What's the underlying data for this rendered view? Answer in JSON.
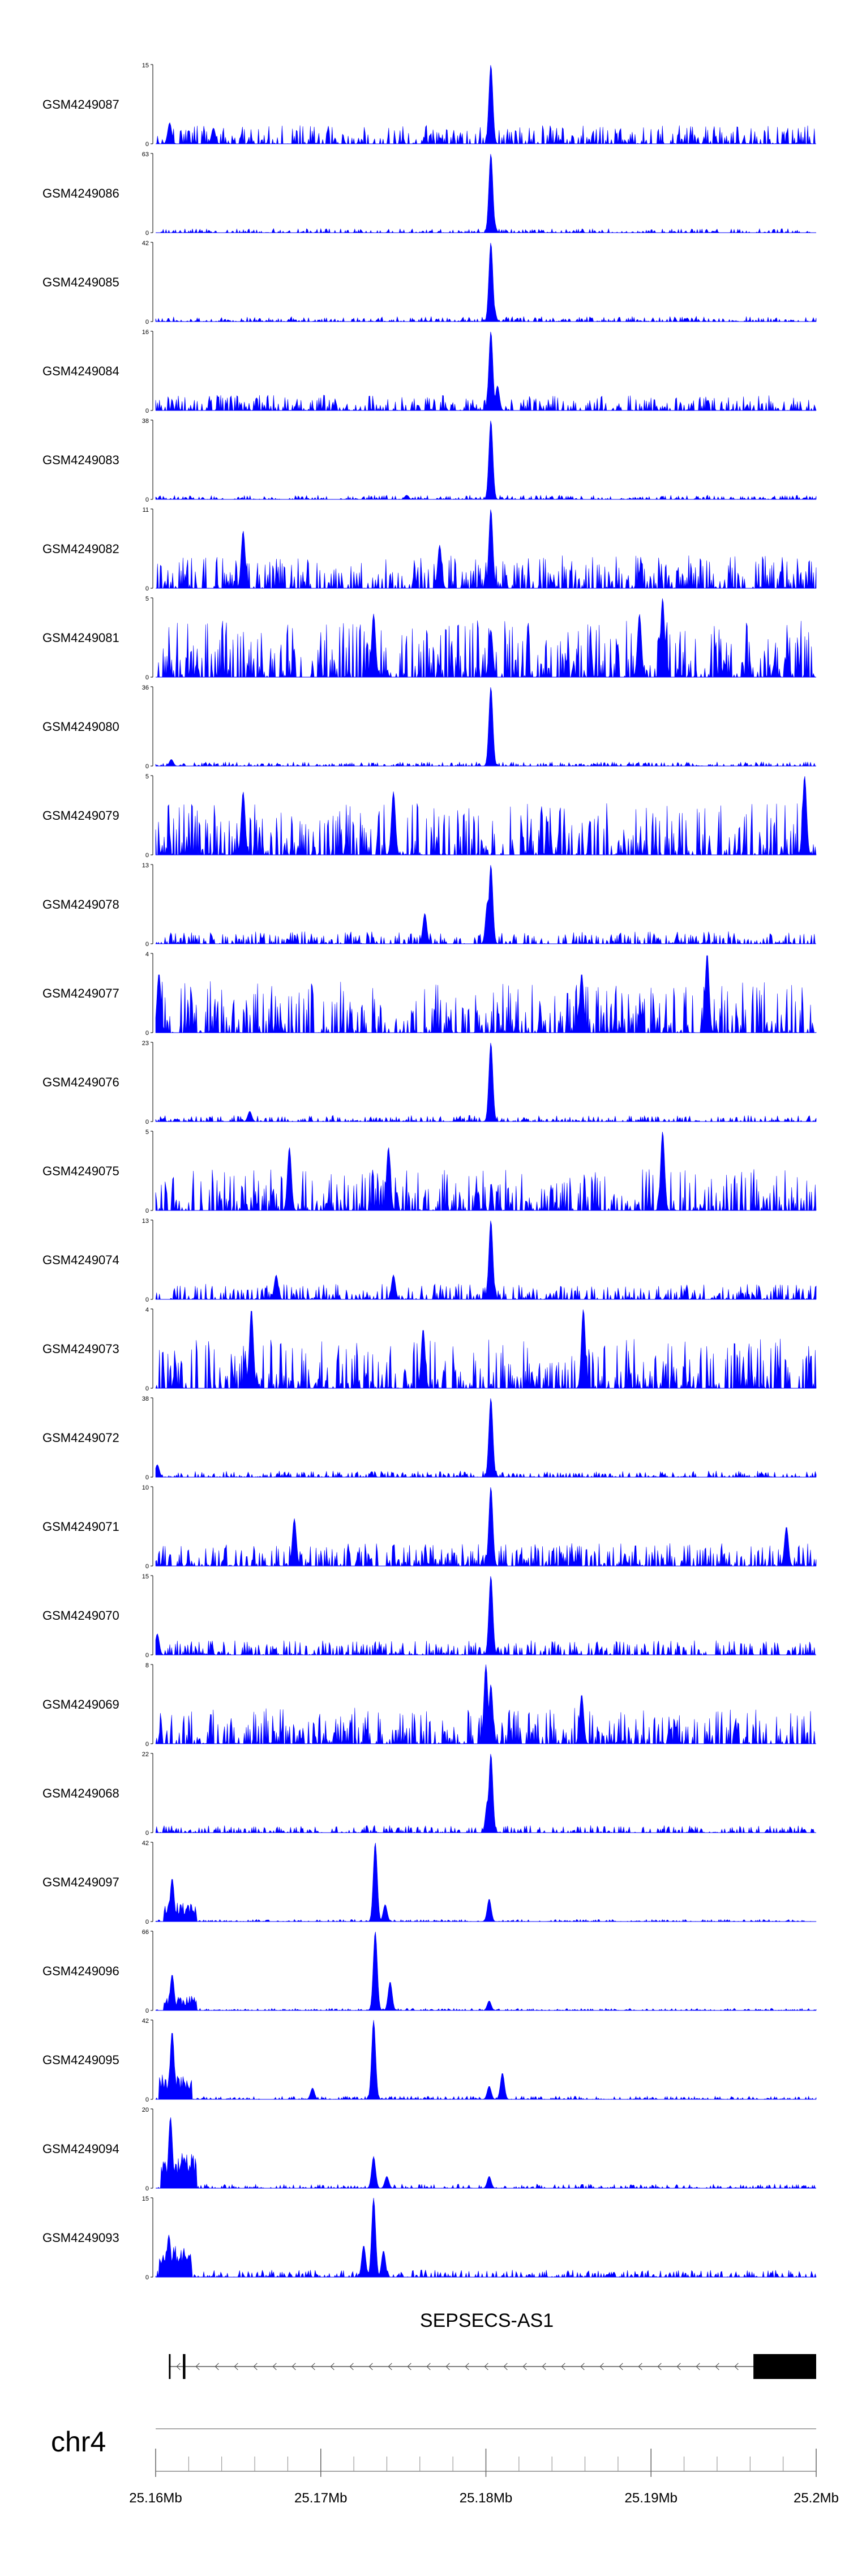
{
  "chart_data": {
    "type": "area",
    "genome": {
      "chromosome": "chr4",
      "x_range": [
        25.16,
        25.2
      ],
      "axis_ticks": [
        {
          "value": 25.16,
          "label": "25.16Mb"
        },
        {
          "value": 25.17,
          "label": "25.17Mb"
        },
        {
          "value": 25.18,
          "label": "25.18Mb"
        },
        {
          "value": 25.19,
          "label": "25.19Mb"
        },
        {
          "value": 25.2,
          "label": "25.2Mb"
        }
      ],
      "minor_tick_step": 0.002
    },
    "gene": {
      "name": "SEPSECS-AS1",
      "start": 25.1608,
      "end": 25.2,
      "strand": "-",
      "exons": [
        [
          25.1608,
          25.1609
        ],
        [
          25.16165,
          25.1618
        ],
        [
          25.1962,
          25.2
        ]
      ]
    },
    "signal_color": "#0000ff",
    "tracks": [
      {
        "name": "GSM4249087",
        "ymax": 15,
        "peaks": [
          [
            25.1803,
            15
          ],
          [
            25.16085,
            4
          ],
          [
            25.1635,
            3
          ]
        ],
        "background": 0.18,
        "noise_seed": 1
      },
      {
        "name": "GSM4249086",
        "ymax": 63,
        "peaks": [
          [
            25.1803,
            63
          ],
          [
            25.18045,
            12
          ]
        ],
        "background": 0.04,
        "noise_seed": 2
      },
      {
        "name": "GSM4249085",
        "ymax": 42,
        "peaks": [
          [
            25.1803,
            42
          ],
          [
            25.18045,
            10
          ]
        ],
        "background": 0.05,
        "noise_seed": 3
      },
      {
        "name": "GSM4249084",
        "ymax": 16,
        "peaks": [
          [
            25.1803,
            16
          ],
          [
            25.1807,
            5
          ]
        ],
        "background": 0.15,
        "noise_seed": 4
      },
      {
        "name": "GSM4249083",
        "ymax": 38,
        "peaks": [
          [
            25.1803,
            38
          ],
          [
            25.1752,
            2
          ]
        ],
        "background": 0.04,
        "noise_seed": 5
      },
      {
        "name": "GSM4249082",
        "ymax": 11,
        "peaks": [
          [
            25.1803,
            11
          ],
          [
            25.1653,
            8
          ],
          [
            25.1772,
            6
          ]
        ],
        "background": 0.32,
        "noise_seed": 6
      },
      {
        "name": "GSM4249081",
        "ymax": 5,
        "peaks": [
          [
            25.1907,
            5
          ],
          [
            25.1893,
            4
          ],
          [
            25.1732,
            4
          ],
          [
            25.1803,
            3
          ]
        ],
        "background": 0.55,
        "noise_seed": 7
      },
      {
        "name": "GSM4249080",
        "ymax": 36,
        "peaks": [
          [
            25.1803,
            36
          ],
          [
            25.16095,
            3
          ]
        ],
        "background": 0.04,
        "noise_seed": 8
      },
      {
        "name": "GSM4249079",
        "ymax": 5,
        "peaks": [
          [
            25.1993,
            5
          ],
          [
            25.1744,
            4
          ],
          [
            25.1653,
            4
          ]
        ],
        "background": 0.5,
        "noise_seed": 9
      },
      {
        "name": "GSM4249078",
        "ymax": 13,
        "peaks": [
          [
            25.1803,
            13
          ],
          [
            25.1801,
            7
          ],
          [
            25.1763,
            5
          ]
        ],
        "background": 0.12,
        "noise_seed": 10
      },
      {
        "name": "GSM4249077",
        "ymax": 4,
        "peaks": [
          [
            25.1934,
            4
          ],
          [
            25.1602,
            3
          ],
          [
            25.1858,
            3
          ]
        ],
        "background": 0.5,
        "noise_seed": 11
      },
      {
        "name": "GSM4249076",
        "ymax": 23,
        "peaks": [
          [
            25.1803,
            23
          ],
          [
            25.1657,
            3
          ]
        ],
        "background": 0.06,
        "noise_seed": 12
      },
      {
        "name": "GSM4249075",
        "ymax": 5,
        "peaks": [
          [
            25.1907,
            5
          ],
          [
            25.1741,
            4
          ],
          [
            25.1681,
            4
          ]
        ],
        "background": 0.4,
        "noise_seed": 13
      },
      {
        "name": "GSM4249074",
        "ymax": 13,
        "peaks": [
          [
            25.1803,
            13
          ],
          [
            25.1744,
            4
          ],
          [
            25.1673,
            4
          ]
        ],
        "background": 0.15,
        "noise_seed": 14
      },
      {
        "name": "GSM4249073",
        "ymax": 4,
        "peaks": [
          [
            25.1658,
            4
          ],
          [
            25.1859,
            4
          ],
          [
            25.1762,
            3
          ]
        ],
        "background": 0.48,
        "noise_seed": 15
      },
      {
        "name": "GSM4249072",
        "ymax": 38,
        "peaks": [
          [
            25.1803,
            38
          ],
          [
            25.1601,
            6
          ]
        ],
        "background": 0.06,
        "noise_seed": 16
      },
      {
        "name": "GSM4249071",
        "ymax": 10,
        "peaks": [
          [
            25.1803,
            10
          ],
          [
            25.1684,
            6
          ],
          [
            25.1982,
            5
          ]
        ],
        "background": 0.22,
        "noise_seed": 17
      },
      {
        "name": "GSM4249070",
        "ymax": 15,
        "peaks": [
          [
            25.1803,
            15
          ],
          [
            25.1601,
            4
          ]
        ],
        "background": 0.14,
        "noise_seed": 18
      },
      {
        "name": "GSM4249069",
        "ymax": 8,
        "peaks": [
          [
            25.18,
            8
          ],
          [
            25.1803,
            6
          ],
          [
            25.1858,
            5
          ]
        ],
        "background": 0.35,
        "noise_seed": 19
      },
      {
        "name": "GSM4249068",
        "ymax": 22,
        "peaks": [
          [
            25.1803,
            22
          ],
          [
            25.1801,
            9
          ]
        ],
        "background": 0.07,
        "noise_seed": 20
      },
      {
        "name": "GSM4249097",
        "ymax": 42,
        "peaks": [
          [
            25.1733,
            42
          ],
          [
            25.161,
            23
          ],
          [
            25.1739,
            9
          ],
          [
            25.1802,
            12
          ]
        ],
        "background": 0.02,
        "noise_seed": 21,
        "cluster": [
          25.1605,
          25.1625,
          10
        ]
      },
      {
        "name": "GSM4249096",
        "ymax": 66,
        "peaks": [
          [
            25.1733,
            66
          ],
          [
            25.1742,
            24
          ],
          [
            25.161,
            30
          ],
          [
            25.1802,
            8
          ]
        ],
        "background": 0.02,
        "noise_seed": 22,
        "cluster": [
          25.1605,
          25.1625,
          12
        ]
      },
      {
        "name": "GSM4249095",
        "ymax": 42,
        "peaks": [
          [
            25.1732,
            42
          ],
          [
            25.161,
            36
          ],
          [
            25.1802,
            7
          ],
          [
            25.181,
            14
          ],
          [
            25.1695,
            6
          ]
        ],
        "background": 0.03,
        "noise_seed": 23,
        "cluster": [
          25.1602,
          25.1622,
          14
        ]
      },
      {
        "name": "GSM4249094",
        "ymax": 20,
        "peaks": [
          [
            25.1609,
            18
          ],
          [
            25.1732,
            8
          ],
          [
            25.174,
            3
          ],
          [
            25.1802,
            3
          ]
        ],
        "background": 0.04,
        "noise_seed": 24,
        "cluster": [
          25.1603,
          25.1625,
          9
        ]
      },
      {
        "name": "GSM4249093",
        "ymax": 15,
        "peaks": [
          [
            25.1732,
            15
          ],
          [
            25.1608,
            8
          ],
          [
            25.1726,
            6
          ],
          [
            25.1738,
            5
          ]
        ],
        "background": 0.07,
        "noise_seed": 25,
        "cluster": [
          25.1602,
          25.1622,
          6
        ]
      }
    ]
  }
}
